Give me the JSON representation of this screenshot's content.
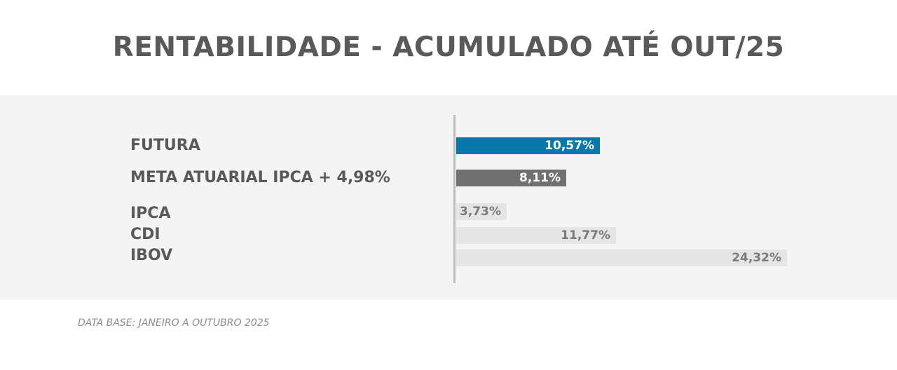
{
  "chart_data": {
    "type": "bar",
    "orientation": "horizontal",
    "title": "RENTABILIDADE - ACUMULADO ATÉ OUT/25",
    "categories": [
      "FUTURA",
      "META ATUARIAL IPCA + 4,98%",
      "IPCA",
      "CDI",
      "IBOV"
    ],
    "values": [
      10.57,
      8.11,
      3.73,
      11.77,
      24.32
    ],
    "value_labels": [
      "10,57%",
      "8,11%",
      "3,73%",
      "11,77%",
      "24,32%"
    ],
    "unit": "%",
    "xlim": [
      0,
      24.32
    ],
    "grid": false,
    "legend": "none",
    "colors": {
      "FUTURA": "#0778aa",
      "META ATUARIAL IPCA + 4,98%": "#707070",
      "IPCA": "#e5e5e5",
      "CDI": "#e5e5e5",
      "IBOV": "#e5e5e5"
    },
    "label_colors": {
      "FUTURA": "#ffffff",
      "META ATUARIAL IPCA + 4,98%": "#ffffff",
      "IPCA": "#7a7a7a",
      "CDI": "#7a7a7a",
      "IBOV": "#7a7a7a"
    }
  },
  "footnote": "DATA BASE: JANEIRO A OUTUBRO 2025"
}
